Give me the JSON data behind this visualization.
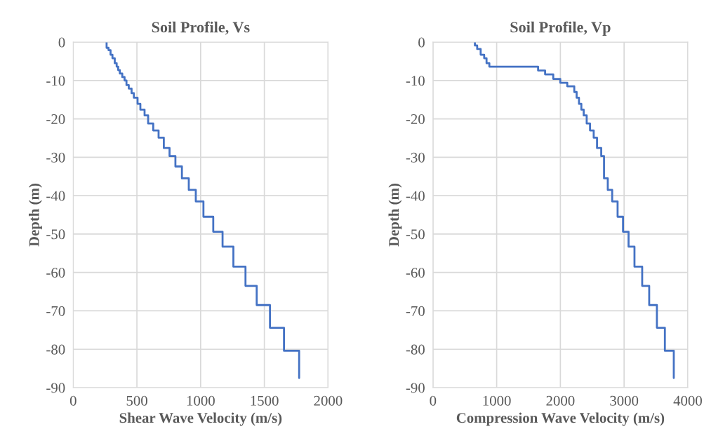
{
  "chart_data": [
    {
      "type": "line",
      "title": "Soil Profile, Vs",
      "xlabel": "Shear Wave Velocity (m/s)",
      "ylabel": "Depth (m)",
      "xlim": [
        0,
        2000
      ],
      "xticks": [
        0,
        500,
        1000,
        1500,
        2000
      ],
      "ylim": [
        -90,
        0
      ],
      "yticks": [
        -90,
        -80,
        -70,
        -60,
        -50,
        -40,
        -30,
        -20,
        -10,
        0
      ],
      "grid": true,
      "legend": false,
      "marker": "none",
      "line_style": "solid",
      "series": [
        {
          "color": "#4472c4",
          "x": [
            262,
            262,
            277,
            277,
            293,
            293,
            308,
            308,
            326,
            326,
            341,
            341,
            353,
            353,
            366,
            366,
            385,
            385,
            403,
            403,
            418,
            418,
            436,
            436,
            458,
            458,
            476,
            476,
            505,
            505,
            527,
            527,
            560,
            560,
            588,
            588,
            628,
            628,
            670,
            670,
            711,
            711,
            756,
            756,
            802,
            802,
            853,
            853,
            907,
            907,
            962,
            962,
            1022,
            1022,
            1099,
            1099,
            1172,
            1172,
            1257,
            1257,
            1352,
            1352,
            1440,
            1440,
            1544,
            1544,
            1654,
            1654,
            1773,
            1773
          ],
          "values": [
            0,
            -1.5,
            -1.5,
            -2.1,
            -2.1,
            -3.3,
            -3.3,
            -4.2,
            -4.2,
            -5.5,
            -5.5,
            -6.4,
            -6.4,
            -7.3,
            -7.3,
            -8.2,
            -8.2,
            -9.1,
            -9.1,
            -10.0,
            -10.0,
            -11.2,
            -11.2,
            -12.1,
            -12.1,
            -13.3,
            -13.3,
            -14.5,
            -14.5,
            -16.1,
            -16.1,
            -17.6,
            -17.6,
            -19.1,
            -19.1,
            -21.2,
            -21.2,
            -23.0,
            -23.0,
            -24.9,
            -24.9,
            -27.6,
            -27.6,
            -29.7,
            -29.7,
            -32.4,
            -32.4,
            -35.5,
            -35.5,
            -38.5,
            -38.5,
            -41.5,
            -41.5,
            -45.5,
            -45.5,
            -49.4,
            -49.4,
            -53.3,
            -53.3,
            -58.5,
            -58.5,
            -63.5,
            -63.5,
            -68.5,
            -68.5,
            -74.4,
            -74.4,
            -80.4,
            -80.4,
            -87.5
          ]
        }
      ]
    },
    {
      "type": "line",
      "title": "Soil Profile, Vp",
      "xlabel": "Compression Wave Velocity (m/s)",
      "ylabel": "Depth (m)",
      "xlim": [
        0,
        4000
      ],
      "xticks": [
        0,
        1000,
        2000,
        3000,
        4000
      ],
      "ylim": [
        -90,
        0
      ],
      "yticks": [
        -90,
        -80,
        -70,
        -60,
        -50,
        -40,
        -30,
        -20,
        -10,
        0
      ],
      "grid": true,
      "legend": false,
      "marker": "none",
      "line_style": "solid",
      "series": [
        {
          "color": "#4472c4",
          "x": [
            658,
            658,
            694,
            694,
            749,
            749,
            804,
            804,
            841,
            841,
            885,
            885,
            1650,
            1650,
            1760,
            1760,
            1888,
            1888,
            1998,
            1998,
            2108,
            2108,
            2218,
            2218,
            2255,
            2255,
            2292,
            2292,
            2329,
            2329,
            2366,
            2366,
            2413,
            2413,
            2465,
            2465,
            2523,
            2523,
            2575,
            2575,
            2641,
            2641,
            2685,
            2685,
            2744,
            2744,
            2813,
            2813,
            2898,
            2898,
            2983,
            2983,
            3070,
            3070,
            3163,
            3163,
            3284,
            3284,
            3394,
            3394,
            3515,
            3515,
            3640,
            3640,
            3780,
            3780
          ],
          "values": [
            0,
            -0.9,
            -0.9,
            -1.8,
            -1.8,
            -3.3,
            -3.3,
            -4.2,
            -4.2,
            -5.5,
            -5.5,
            -6.4,
            -6.4,
            -7.4,
            -7.4,
            -8.4,
            -8.4,
            -9.6,
            -9.6,
            -10.6,
            -10.6,
            -11.5,
            -11.5,
            -13.0,
            -13.0,
            -14.5,
            -14.5,
            -16.1,
            -16.1,
            -17.6,
            -17.6,
            -19.1,
            -19.1,
            -21.2,
            -21.2,
            -23.0,
            -23.0,
            -24.9,
            -24.9,
            -27.6,
            -27.6,
            -29.7,
            -29.7,
            -35.5,
            -35.5,
            -38.5,
            -38.5,
            -41.5,
            -41.5,
            -45.5,
            -45.5,
            -49.4,
            -49.4,
            -53.3,
            -53.3,
            -58.5,
            -58.5,
            -63.5,
            -63.5,
            -68.5,
            -68.5,
            -74.4,
            -74.4,
            -80.4,
            -80.4,
            -87.5
          ]
        }
      ]
    }
  ]
}
